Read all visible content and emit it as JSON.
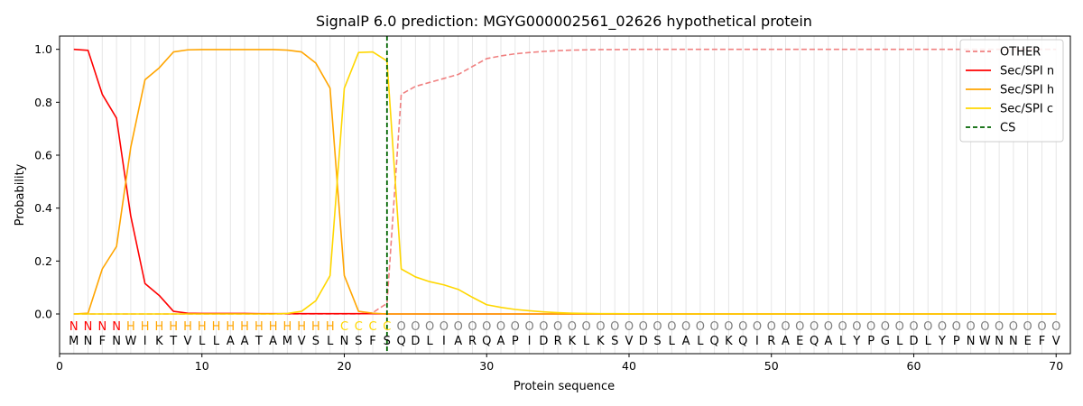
{
  "chart_data": {
    "type": "line",
    "title": "SignalP 6.0 prediction: MGYG000002561_02626 hypothetical protein",
    "xlabel": "Protein sequence",
    "ylabel": "Probability",
    "xlim": [
      0,
      71
    ],
    "ylim": [
      -0.15,
      1.05
    ],
    "x_ticks": [
      0,
      10,
      20,
      30,
      40,
      50,
      60,
      70
    ],
    "y_ticks": [
      0.0,
      0.2,
      0.4,
      0.6,
      0.8,
      1.0
    ],
    "y_tick_labels": [
      "0.0",
      "0.2",
      "0.4",
      "0.6",
      "0.8",
      "1.0"
    ],
    "grid": "vertical lines at each residue",
    "legend_position": "top-right",
    "sequence": [
      "M",
      "N",
      "F",
      "N",
      "W",
      "I",
      "K",
      "T",
      "V",
      "L",
      "L",
      "A",
      "A",
      "T",
      "A",
      "M",
      "V",
      "S",
      "L",
      "N",
      "S",
      "F",
      "S",
      "Q",
      "D",
      "L",
      "I",
      "A",
      "R",
      "Q",
      "A",
      "P",
      "I",
      "D",
      "R",
      "K",
      "L",
      "K",
      "S",
      "V",
      "D",
      "S",
      "L",
      "A",
      "L",
      "Q",
      "K",
      "Q",
      "I",
      "R",
      "A",
      "E",
      "Q",
      "A",
      "L",
      "Y",
      "P",
      "G",
      "L",
      "D",
      "L",
      "Y",
      "P",
      "N",
      "W",
      "N",
      "N",
      "E",
      "F",
      "V"
    ],
    "labels": [
      "N",
      "N",
      "N",
      "N",
      "H",
      "H",
      "H",
      "H",
      "H",
      "H",
      "H",
      "H",
      "H",
      "H",
      "H",
      "H",
      "H",
      "H",
      "H",
      "C",
      "C",
      "C",
      "C",
      "O",
      "O",
      "O",
      "O",
      "O",
      "O",
      "O",
      "O",
      "O",
      "O",
      "O",
      "O",
      "O",
      "O",
      "O",
      "O",
      "O",
      "O",
      "O",
      "O",
      "O",
      "O",
      "O",
      "O",
      "O",
      "O",
      "O",
      "O",
      "O",
      "O",
      "O",
      "O",
      "O",
      "O",
      "O",
      "O",
      "O",
      "O",
      "O",
      "O",
      "O",
      "O",
      "O",
      "O",
      "O",
      "O",
      "O"
    ],
    "label_colors": {
      "N": "#ff0000",
      "H": "#ffa500",
      "C": "#ffd700",
      "O": "#808080"
    },
    "series": [
      {
        "name": "OTHER",
        "color": "#f08080",
        "dash": true,
        "values": [
          0.0,
          0.0,
          0.0,
          0.0,
          0.0,
          0.0,
          0.0,
          0.0,
          0.0,
          0.0,
          0.0,
          0.0,
          0.0,
          0.0,
          0.0,
          0.0,
          0.0,
          0.0,
          0.0,
          0.0,
          0.0,
          0.005,
          0.04,
          0.83,
          0.86,
          0.875,
          0.89,
          0.905,
          0.935,
          0.965,
          0.975,
          0.983,
          0.988,
          0.992,
          0.995,
          0.997,
          0.998,
          0.999,
          0.999,
          0.9995,
          1.0,
          1.0,
          1.0,
          1.0,
          1.0,
          1.0,
          1.0,
          1.0,
          1.0,
          1.0,
          1.0,
          1.0,
          1.0,
          1.0,
          1.0,
          1.0,
          1.0,
          1.0,
          1.0,
          1.0,
          1.0,
          1.0,
          1.0,
          1.0,
          1.0,
          1.0,
          1.0,
          1.0,
          1.0,
          1.0
        ]
      },
      {
        "name": "Sec/SPI n",
        "color": "#ff0000",
        "dash": false,
        "values": [
          1.0,
          0.996,
          0.83,
          0.74,
          0.37,
          0.115,
          0.07,
          0.01,
          0.003,
          0.002,
          0.002,
          0.002,
          0.002,
          0.001,
          0.001,
          0.001,
          0.001,
          0.001,
          0.001,
          0.001,
          0.001,
          0.001,
          0.0,
          0.0,
          0.0,
          0.0,
          0.0,
          0.0,
          0.0,
          0.0,
          0.0,
          0.0,
          0.0,
          0.0,
          0.0,
          0.0,
          0.0,
          0.0,
          0.0,
          0.0,
          0.0,
          0.0,
          0.0,
          0.0,
          0.0,
          0.0,
          0.0,
          0.0,
          0.0,
          0.0,
          0.0,
          0.0,
          0.0,
          0.0,
          0.0,
          0.0,
          0.0,
          0.0,
          0.0,
          0.0,
          0.0,
          0.0,
          0.0,
          0.0,
          0.0,
          0.0,
          0.0,
          0.0,
          0.0,
          0.0
        ]
      },
      {
        "name": "Sec/SPI h",
        "color": "#ffa500",
        "dash": false,
        "values": [
          0.0,
          0.003,
          0.17,
          0.255,
          0.63,
          0.885,
          0.93,
          0.99,
          0.998,
          0.999,
          0.999,
          0.999,
          0.999,
          0.999,
          0.999,
          0.997,
          0.99,
          0.948,
          0.853,
          0.145,
          0.01,
          0.003,
          0.0,
          0.0,
          0.0,
          0.0,
          0.0,
          0.0,
          0.0,
          0.0,
          0.0,
          0.0,
          0.0,
          0.0,
          0.0,
          0.0,
          0.0,
          0.0,
          0.0,
          0.0,
          0.0,
          0.0,
          0.0,
          0.0,
          0.0,
          0.0,
          0.0,
          0.0,
          0.0,
          0.0,
          0.0,
          0.0,
          0.0,
          0.0,
          0.0,
          0.0,
          0.0,
          0.0,
          0.0,
          0.0,
          0.0,
          0.0,
          0.0,
          0.0,
          0.0,
          0.0,
          0.0,
          0.0,
          0.0,
          0.0
        ]
      },
      {
        "name": "Sec/SPI c",
        "color": "#ffd700",
        "dash": false,
        "values": [
          0.0,
          0.0,
          0.0,
          0.0,
          0.0,
          0.0,
          0.0,
          0.0,
          0.0,
          0.0,
          0.0,
          0.0,
          0.0,
          0.0,
          0.0,
          0.002,
          0.01,
          0.05,
          0.145,
          0.853,
          0.988,
          0.99,
          0.956,
          0.17,
          0.14,
          0.122,
          0.11,
          0.093,
          0.063,
          0.035,
          0.025,
          0.017,
          0.012,
          0.008,
          0.005,
          0.003,
          0.002,
          0.001,
          0.001,
          0.0005,
          0.0,
          0.0,
          0.0,
          0.0,
          0.0,
          0.0,
          0.0,
          0.0,
          0.0,
          0.0,
          0.0,
          0.0,
          0.0,
          0.0,
          0.0,
          0.0,
          0.0,
          0.0,
          0.0,
          0.0,
          0.0,
          0.0,
          0.0,
          0.0,
          0.0,
          0.0,
          0.0,
          0.0,
          0.0,
          0.0
        ]
      }
    ],
    "cs": {
      "name": "CS",
      "x": 23,
      "color": "#006400"
    }
  }
}
